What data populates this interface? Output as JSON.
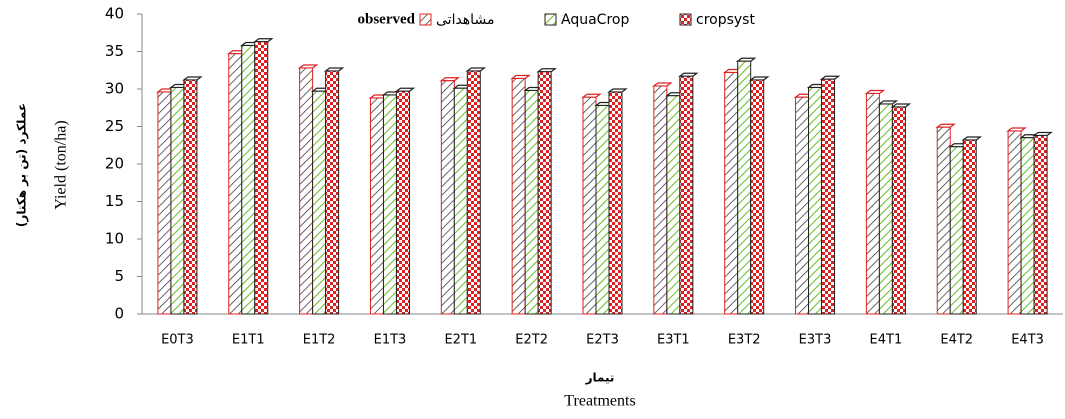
{
  "chart_data": {
    "type": "bar",
    "legend_note": "observed",
    "x_label": "Treatments",
    "x_label_fa": "تیمار",
    "y_label": "Yield (ton/ha)",
    "y_label_fa": "عملکرد (تن بر هکتار)",
    "categories": [
      "E0T3",
      "E1T1",
      "E1T2",
      "E1T3",
      "E2T1",
      "E2T2",
      "E2T3",
      "E3T1",
      "E3T2",
      "E3T3",
      "E4T1",
      "E4T2",
      "E4T3"
    ],
    "series": [
      {
        "name": "مشاهداتی",
        "color": "#e02020",
        "values": [
          29.6,
          34.7,
          32.8,
          28.8,
          31.1,
          31.4,
          28.9,
          30.4,
          32.2,
          28.9,
          29.4,
          24.9,
          24.4
        ]
      },
      {
        "name": "AquaCrop",
        "color": "#66bb22",
        "values": [
          30.2,
          35.8,
          29.7,
          29.2,
          30.1,
          29.8,
          27.8,
          29.1,
          33.7,
          30.2,
          28.0,
          22.3,
          23.5
        ]
      },
      {
        "name": "cropsyst",
        "color": "#e02020",
        "values": [
          31.2,
          36.3,
          32.4,
          29.7,
          32.4,
          32.3,
          29.6,
          31.7,
          31.2,
          31.3,
          27.6,
          23.2,
          23.8
        ]
      }
    ],
    "ylim": [
      0,
      40
    ],
    "yticks": [
      0,
      5,
      10,
      15,
      20,
      25,
      30,
      35,
      40
    ],
    "grid": false
  }
}
